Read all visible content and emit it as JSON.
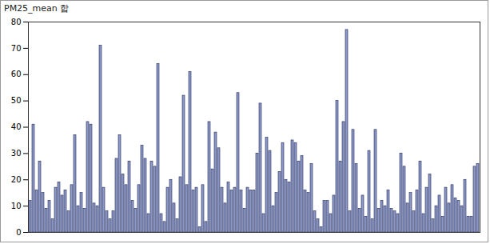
{
  "chart_data": {
    "type": "bar",
    "title": "PM25_mean 합",
    "categories": [
      null,
      null,
      null,
      null,
      null,
      null,
      null,
      null,
      null,
      null,
      null,
      null,
      null,
      null,
      null,
      null,
      null,
      null,
      null,
      null,
      null,
      null,
      null,
      null,
      null,
      null,
      null,
      null,
      null,
      null,
      null,
      null,
      null,
      null,
      null,
      null,
      null,
      null,
      null,
      null,
      null,
      null,
      null,
      null,
      null,
      null,
      null,
      null,
      null,
      null,
      null,
      null,
      null,
      null,
      null,
      null,
      null,
      null,
      null,
      null,
      null,
      null,
      null,
      null,
      null,
      null,
      null,
      null,
      null,
      null,
      null,
      null,
      null,
      null,
      null,
      null,
      null,
      null,
      null,
      null,
      null,
      null,
      null,
      null,
      null,
      null,
      null,
      null,
      null,
      null,
      null,
      null,
      null,
      null,
      null,
      null,
      null,
      null,
      null,
      null,
      null,
      null,
      null,
      null,
      null,
      null,
      null,
      null,
      null,
      null,
      null,
      null,
      null,
      null,
      null,
      null,
      null,
      null,
      null,
      null,
      null,
      null,
      null,
      null,
      null,
      null,
      null,
      null,
      null,
      null,
      null,
      null,
      null,
      null,
      null,
      null,
      null,
      null,
      null,
      null,
      null
    ],
    "values": [
      12,
      41,
      16,
      27,
      15,
      9,
      12,
      5,
      17,
      19,
      14,
      16,
      8,
      18,
      37,
      10,
      15,
      9,
      42,
      41,
      11,
      10,
      71,
      17,
      8,
      5,
      8,
      28,
      37,
      22,
      18,
      27,
      12,
      9,
      18,
      33,
      28,
      7,
      27,
      25,
      64,
      7,
      4,
      17,
      20,
      11,
      5,
      21,
      52,
      18,
      61,
      16,
      17,
      2,
      18,
      4,
      42,
      24,
      38,
      32,
      17,
      11,
      19,
      16,
      17,
      53,
      16,
      9,
      17,
      16,
      16,
      30,
      49,
      7,
      36,
      31,
      10,
      15,
      23,
      34,
      20,
      19,
      35,
      34,
      27,
      29,
      16,
      15,
      26,
      8,
      5,
      2,
      12,
      12,
      7,
      14,
      50,
      27,
      42,
      77,
      8,
      39,
      26,
      9,
      14,
      6,
      31,
      5,
      39,
      9,
      12,
      10,
      16,
      9,
      8,
      7,
      30,
      25,
      11,
      15,
      8,
      16,
      27,
      7,
      17,
      22,
      5,
      10,
      14,
      6,
      17,
      11,
      18,
      13,
      12,
      10,
      20,
      6,
      6,
      25,
      26
    ],
    "color": "#8e98c4",
    "ylim": [
      0,
      80
    ],
    "yticks": [
      0,
      10,
      20,
      30,
      40,
      50,
      60,
      70,
      80
    ],
    "grid": false,
    "tick_labels": "y"
  }
}
